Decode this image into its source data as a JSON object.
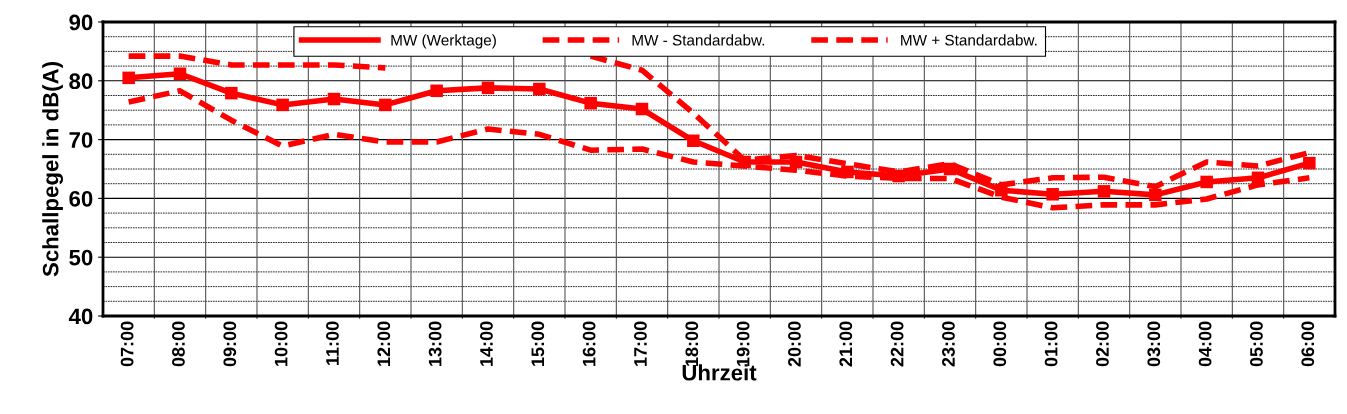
{
  "chart_data": {
    "type": "line",
    "xlabel": "Uhrzeit",
    "ylabel": "Schallpegel in dB(A)",
    "categories": [
      "07:00",
      "08:00",
      "09:00",
      "10:00",
      "11:00",
      "12:00",
      "13:00",
      "14:00",
      "15:00",
      "16:00",
      "17:00",
      "18:00",
      "19:00",
      "20:00",
      "21:00",
      "22:00",
      "23:00",
      "00:00",
      "01:00",
      "02:00",
      "03:00",
      "04:00",
      "05:00",
      "06:00"
    ],
    "series": [
      {
        "name": "MW (Werktage)",
        "color": "#ff0000",
        "line_style": "solid",
        "marker": "square",
        "values": [
          80.5,
          81.2,
          77.9,
          75.9,
          76.9,
          75.9,
          78.3,
          78.8,
          78.6,
          76.2,
          75.2,
          69.8,
          66.2,
          66.2,
          64.5,
          63.8,
          65,
          61.4,
          60.7,
          61.2,
          60.6,
          62.8,
          63.5,
          66
        ]
      },
      {
        "name": "MW - Standardabw.",
        "color": "#ff0000",
        "line_style": "dashed",
        "marker": "none",
        "values": [
          76.4,
          78.3,
          73.3,
          68.9,
          70.9,
          69.6,
          69.6,
          71.8,
          70.9,
          68.2,
          68.4,
          66.2,
          65.5,
          64.8,
          63.8,
          63.4,
          63.4,
          60.2,
          58.4,
          58.9,
          58.9,
          59.9,
          62.3,
          63.5
        ]
      },
      {
        "name": "MW + Standardabw.",
        "color": "#ff0000",
        "line_style": "dashed",
        "marker": "none",
        "values": [
          84.2,
          84.2,
          82.7,
          82.7,
          82.7,
          82.2,
          null,
          null,
          null,
          84.2,
          81.8,
          74.5,
          66.5,
          67.3,
          65.9,
          64.5,
          65.9,
          62.3,
          63.5,
          63.6,
          62,
          66.2,
          65.5,
          67.8
        ]
      }
    ],
    "ylim": [
      40,
      90
    ],
    "yticks": [
      40,
      {
        "value": 42.5,
        "label": null
      },
      {
        "value": 45,
        "label": null
      },
      {
        "value": 47.5,
        "label": null
      },
      50,
      {
        "value": 52.5,
        "label": null
      },
      {
        "value": 55,
        "label": null
      },
      {
        "value": 57.5,
        "label": null
      },
      60,
      {
        "value": 62.5,
        "label": null
      },
      {
        "value": 65,
        "label": null
      },
      {
        "value": 67.5,
        "label": null
      },
      70,
      {
        "value": 72.5,
        "label": null
      },
      {
        "value": 75,
        "label": null
      },
      {
        "value": 77.5,
        "label": null
      },
      80,
      {
        "value": 82.5,
        "label": null
      },
      {
        "value": 85,
        "label": null
      },
      {
        "value": 87.5,
        "label": null
      },
      90
    ],
    "grid": true,
    "legend": "top"
  }
}
